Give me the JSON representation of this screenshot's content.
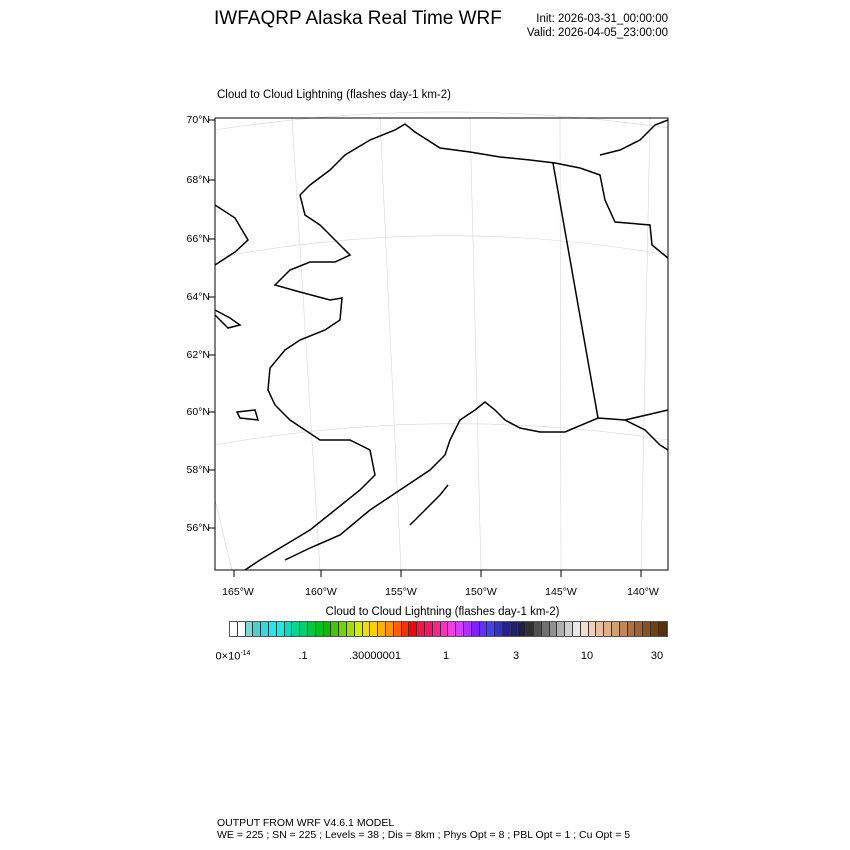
{
  "header": {
    "title": "IWFAQRP Alaska Real Time WRF",
    "init": "Init: 2026-03-31_00:00:00",
    "valid": "Valid: 2026-04-05_23:00:00"
  },
  "map": {
    "subtitle": "Cloud to Cloud Lightning   (flashes day-1 km-2)",
    "lat_labels": [
      "70°N",
      "68°N",
      "66°N",
      "64°N",
      "62°N",
      "60°N",
      "58°N",
      "56°N"
    ],
    "lon_labels": [
      "165°W",
      "160°W",
      "155°W",
      "150°W",
      "145°W",
      "140°W"
    ],
    "field_values": "none shown"
  },
  "colorbar": {
    "title": "Cloud to Cloud Lightning  (flashes day-1 km-2)",
    "labels": [
      "0×10",
      "-14",
      ".1",
      ".30000001",
      "1",
      "3",
      "10",
      "30"
    ],
    "colors": [
      "#ffffff",
      "#ffffff",
      "#7fd8d8",
      "#50cfd0",
      "#36d8e0",
      "#20e8f0",
      "#10f0e0",
      "#00e0c0",
      "#00d890",
      "#00d070",
      "#00c840",
      "#00c020",
      "#10b800",
      "#40c800",
      "#70d800",
      "#a0e000",
      "#d0f000",
      "#f0e000",
      "#ffd000",
      "#ffb000",
      "#ff9000",
      "#ff6000",
      "#ff3000",
      "#ff0000",
      "#ff1040",
      "#ff1060",
      "#ff2090",
      "#ff30c0",
      "#f040e0",
      "#d040ff",
      "#b030ff",
      "#8020ff",
      "#6030ff",
      "#4040ff",
      "#3030d0",
      "#2020a0",
      "#202070",
      "#202040",
      "#303030",
      "#505050",
      "#707070",
      "#909090",
      "#b0b0b0",
      "#d0d0d0",
      "#e8e8e8",
      "#f0e0d0",
      "#f0d0b8",
      "#e8c0a0",
      "#e0b088",
      "#d0a070",
      "#c08858",
      "#b07040",
      "#a06030",
      "#8a5020",
      "#704010",
      "#603000"
    ]
  },
  "footer": {
    "line1": "OUTPUT FROM WRF V4.6.1 MODEL",
    "line2": "WE = 225 ; SN = 225 ; Levels = 38 ; Dis = 8km ; Phys Opt = 8 ; PBL Opt = 1 ; Cu Opt = 5"
  }
}
